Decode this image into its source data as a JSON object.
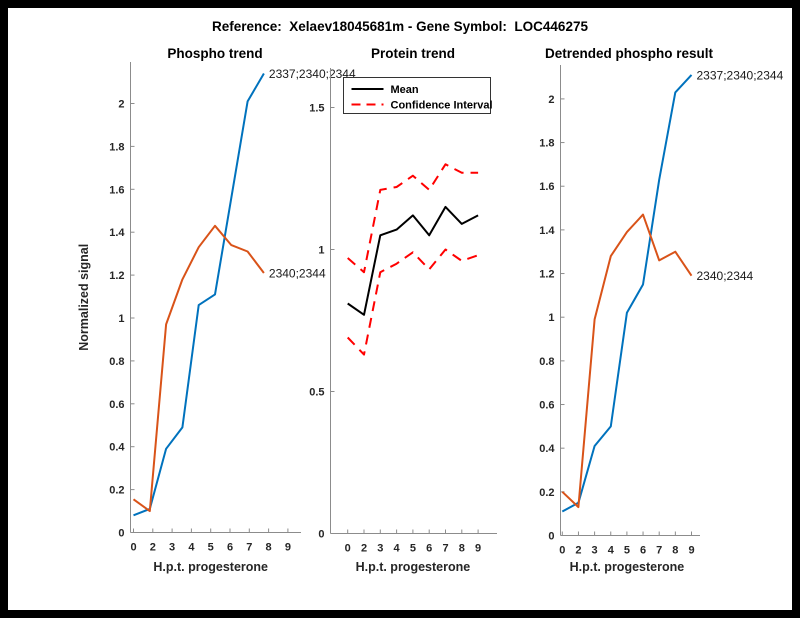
{
  "figure_title": "Reference:  Xelaev18045681m - Gene Symbol:  LOC446275",
  "colors": {
    "blue": "#0072BD",
    "orange": "#D95319",
    "mean": "#000000",
    "ci": "#FF0000",
    "axis": "#8c8c8c",
    "tick_label": "#262626"
  },
  "xlabel": "H.p.t. progesterone",
  "ylabel": "Normalized signal",
  "chart_data": [
    {
      "type": "line",
      "title": "Phospho trend",
      "xlabel": "H.p.t. progesterone",
      "ylabel": "Normalized signal",
      "categories": [
        "0",
        "2",
        "3",
        "4",
        "5",
        "6",
        "7",
        "8",
        "9"
      ],
      "yticks": [
        "0",
        "0.2",
        "0.4",
        "0.6",
        "0.8",
        "1",
        "1.2",
        "1.4",
        "1.6",
        "1.8",
        "2"
      ],
      "ytick_values": [
        0,
        0.2,
        0.4,
        0.6,
        0.8,
        1,
        1.2,
        1.4,
        1.6,
        1.8,
        2
      ],
      "ylim": [
        0,
        2.19
      ],
      "grid": false,
      "series": [
        {
          "name": "2337;2340;2344",
          "color_key": "blue",
          "dash": false,
          "end_label": true,
          "values": [
            0.08,
            0.11,
            0.39,
            0.49,
            1.06,
            1.11,
            1.56,
            2.01,
            2.14
          ]
        },
        {
          "name": "2340;2344",
          "color_key": "orange",
          "dash": false,
          "end_label": true,
          "values": [
            0.155,
            0.1,
            0.97,
            1.18,
            1.33,
            1.43,
            1.34,
            1.31,
            1.21
          ]
        }
      ]
    },
    {
      "type": "line",
      "title": "Protein trend",
      "xlabel": "H.p.t. progesterone",
      "ylabel": "",
      "categories": [
        "0",
        "2",
        "3",
        "4",
        "5",
        "6",
        "7",
        "8",
        "9"
      ],
      "yticks": [
        "0",
        "0.5",
        "1",
        "1.5"
      ],
      "ytick_values": [
        0,
        0.5,
        1,
        1.5
      ],
      "ylim": [
        0,
        1.63
      ],
      "grid": false,
      "legend": {
        "position": "top-left",
        "items": [
          {
            "label": "Mean",
            "color_key": "mean",
            "dash": false
          },
          {
            "label": "Confidence Interval",
            "color_key": "ci",
            "dash": true
          }
        ]
      },
      "series": [
        {
          "name": "Mean",
          "color_key": "mean",
          "dash": false,
          "end_label": false,
          "values": [
            0.81,
            0.77,
            1.05,
            1.07,
            1.12,
            1.05,
            1.15,
            1.09,
            1.12
          ]
        },
        {
          "name": "Confidence Interval upper",
          "color_key": "ci",
          "dash": true,
          "end_label": false,
          "values": [
            0.97,
            0.92,
            1.21,
            1.22,
            1.26,
            1.21,
            1.3,
            1.27,
            1.27
          ]
        },
        {
          "name": "Confidence Interval lower",
          "color_key": "ci",
          "dash": true,
          "end_label": false,
          "values": [
            0.69,
            0.63,
            0.92,
            0.95,
            0.99,
            0.93,
            1.0,
            0.96,
            0.98
          ]
        }
      ]
    },
    {
      "type": "line",
      "title": "Detrended phospho result",
      "xlabel": "H.p.t. progesterone",
      "ylabel": "",
      "categories": [
        "0",
        "2",
        "3",
        "4",
        "5",
        "6",
        "7",
        "8",
        "9"
      ],
      "yticks": [
        "0",
        "0.2",
        "0.4",
        "0.6",
        "0.8",
        "1",
        "1.2",
        "1.4",
        "1.6",
        "1.8",
        "2"
      ],
      "ytick_values": [
        0,
        0.2,
        0.4,
        0.6,
        0.8,
        1,
        1.2,
        1.4,
        1.6,
        1.8,
        2
      ],
      "ylim": [
        0,
        2.15
      ],
      "grid": false,
      "series": [
        {
          "name": "2337;2340;2344",
          "color_key": "blue",
          "dash": false,
          "end_label": true,
          "values": [
            0.11,
            0.15,
            0.41,
            0.5,
            1.02,
            1.15,
            1.63,
            2.03,
            2.11
          ]
        },
        {
          "name": "2340;2344",
          "color_key": "orange",
          "dash": false,
          "end_label": true,
          "values": [
            0.2,
            0.13,
            0.99,
            1.28,
            1.39,
            1.47,
            1.26,
            1.3,
            1.19
          ]
        }
      ]
    }
  ]
}
